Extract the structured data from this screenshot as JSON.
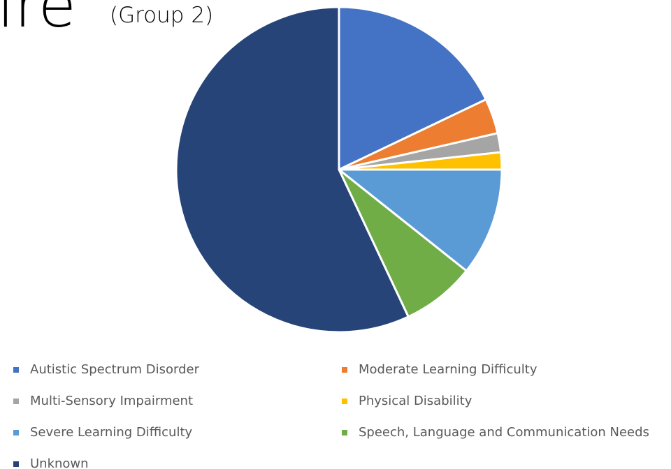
{
  "chart_data": {
    "type": "pie",
    "title": "ire",
    "subtitle": "(Group 2)",
    "categories": [
      "Autistic Spectrum Disorder",
      "Moderate Learning Difficulty",
      "Multi-Sensory Impairment",
      "Physical Disability",
      "Severe Learning Difficulty",
      "Speech, Language and Communication Needs",
      "Unknown"
    ],
    "values": [
      17.9,
      3.5,
      1.9,
      1.7,
      10.7,
      7.3,
      57
    ],
    "colors": [
      "#4472c4",
      "#ed7d31",
      "#a5a5a5",
      "#ffc000",
      "#5b9bd5",
      "#70ad47",
      "#264478"
    ]
  }
}
